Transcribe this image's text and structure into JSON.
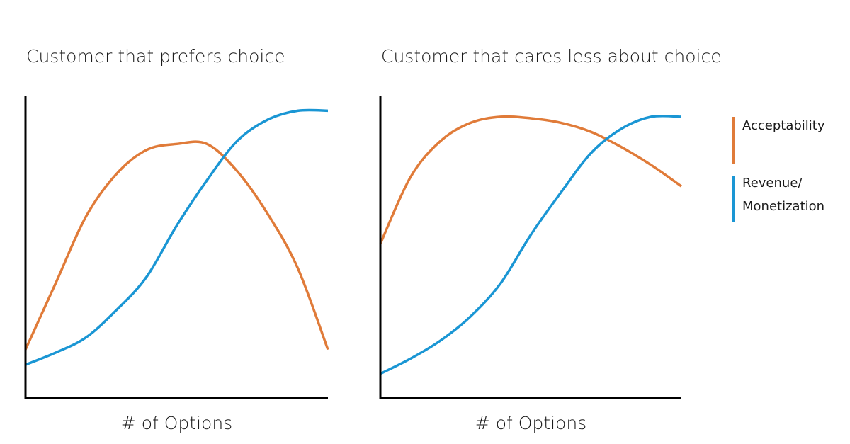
{
  "chart_data": [
    {
      "type": "line",
      "title": "Customer that prefers choice",
      "xlabel": "# of Options",
      "x": [
        0,
        10,
        20,
        30,
        40,
        50,
        60,
        70,
        80,
        90,
        100
      ],
      "xlim": [
        0,
        100
      ],
      "ylim": [
        0,
        100
      ],
      "series": [
        {
          "name": "Acceptability",
          "color": "#e07b39",
          "values": [
            16,
            38,
            60,
            74,
            82,
            84,
            84,
            75,
            61,
            43,
            16
          ]
        },
        {
          "name": "Revenue/ Monetization",
          "color": "#1a96d4",
          "values": [
            11,
            15,
            20,
            29,
            40,
            57,
            72,
            85,
            92,
            95,
            95
          ]
        }
      ]
    },
    {
      "type": "line",
      "title": "Customer that cares less about choice",
      "xlabel": "# of Options",
      "x": [
        0,
        10,
        20,
        30,
        40,
        50,
        60,
        70,
        80,
        90,
        100
      ],
      "xlim": [
        0,
        100
      ],
      "ylim": [
        0,
        100
      ],
      "series": [
        {
          "name": "Acceptability",
          "color": "#e07b39",
          "values": [
            51,
            73,
            85,
            91,
            93,
            92.5,
            91,
            88,
            83,
            77,
            70
          ]
        },
        {
          "name": "Revenue/ Monetization",
          "color": "#1a96d4",
          "values": [
            8,
            13,
            19,
            27,
            38,
            54,
            68,
            81,
            89,
            93,
            93
          ]
        }
      ]
    }
  ]
}
